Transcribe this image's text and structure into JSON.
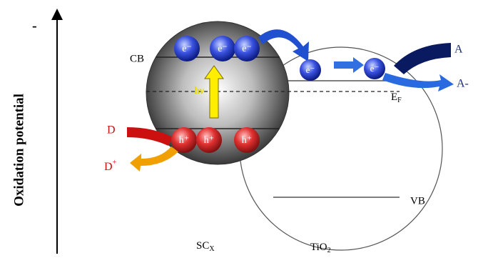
{
  "axis": {
    "sign": "-",
    "label": "Oxidation potential"
  },
  "sc": {
    "cb": "CB",
    "hv": "hν",
    "electrons": [
      "e⁻",
      "e⁻",
      "e⁻"
    ],
    "holes": [
      "h⁺",
      "h⁺",
      "h⁺"
    ],
    "label": {
      "main": "SC",
      "sub": "X"
    }
  },
  "tio2": {
    "electrons": [
      "e⁻",
      "e⁻"
    ],
    "fermi": {
      "main": "E",
      "sub": "F"
    },
    "vb": "VB",
    "label": {
      "main": "TiO",
      "sub": "2"
    }
  },
  "donor": {
    "d": "D",
    "d_plus": {
      "main": "D",
      "sup": "+"
    }
  },
  "acceptor": {
    "a": "A",
    "a_minus": "A-"
  }
}
